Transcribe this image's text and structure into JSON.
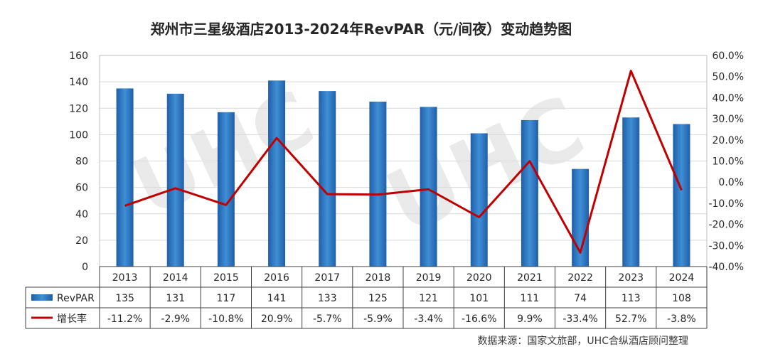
{
  "chart_data": {
    "type": "bar",
    "title": "郑州市三星级酒店2013-2024年RevPAR（元/间夜）变动趋势图",
    "categories": [
      "2013",
      "2014",
      "2015",
      "2016",
      "2017",
      "2018",
      "2019",
      "2020",
      "2021",
      "2022",
      "2023",
      "2024"
    ],
    "series": [
      {
        "name": "RevPAR",
        "type": "bar",
        "axis": "left",
        "color": "#2e75b6",
        "values": [
          135,
          131,
          117,
          141,
          133,
          125,
          121,
          101,
          111,
          74,
          113,
          108
        ]
      },
      {
        "name": "增长率",
        "type": "line",
        "axis": "right",
        "color": "#c00000",
        "values": [
          -11.2,
          -2.9,
          -10.8,
          20.9,
          -5.7,
          -5.9,
          -3.4,
          -16.6,
          9.9,
          -33.4,
          52.7,
          -3.8
        ]
      }
    ],
    "left_axis": {
      "min": 0,
      "max": 160,
      "step": 20,
      "ticks": [
        "160",
        "140",
        "120",
        "100",
        "80",
        "60",
        "40",
        "20",
        "0"
      ]
    },
    "right_axis": {
      "min": -40,
      "max": 60,
      "step": 10,
      "ticks": [
        "60.0%",
        "50.0%",
        "40.0%",
        "30.0%",
        "20.0%",
        "10.0%",
        "0.0%",
        "-10.0%",
        "-20.0%",
        "-30.0%",
        "-40.0%"
      ]
    },
    "table": {
      "rows": [
        {
          "label": "RevPAR",
          "cells": [
            "135",
            "131",
            "117",
            "141",
            "133",
            "125",
            "121",
            "101",
            "111",
            "74",
            "113",
            "108"
          ]
        },
        {
          "label": "增长率",
          "cells": [
            "-11.2%",
            "-2.9%",
            "-10.8%",
            "20.9%",
            "-5.7%",
            "-5.9%",
            "-3.4%",
            "-16.6%",
            "9.9%",
            "-33.4%",
            "52.7%",
            "-3.8%"
          ]
        }
      ]
    },
    "grid": true,
    "source": "数据来源：国家文旅部，UHC合纵酒店顾问整理",
    "watermark": "UHC"
  }
}
